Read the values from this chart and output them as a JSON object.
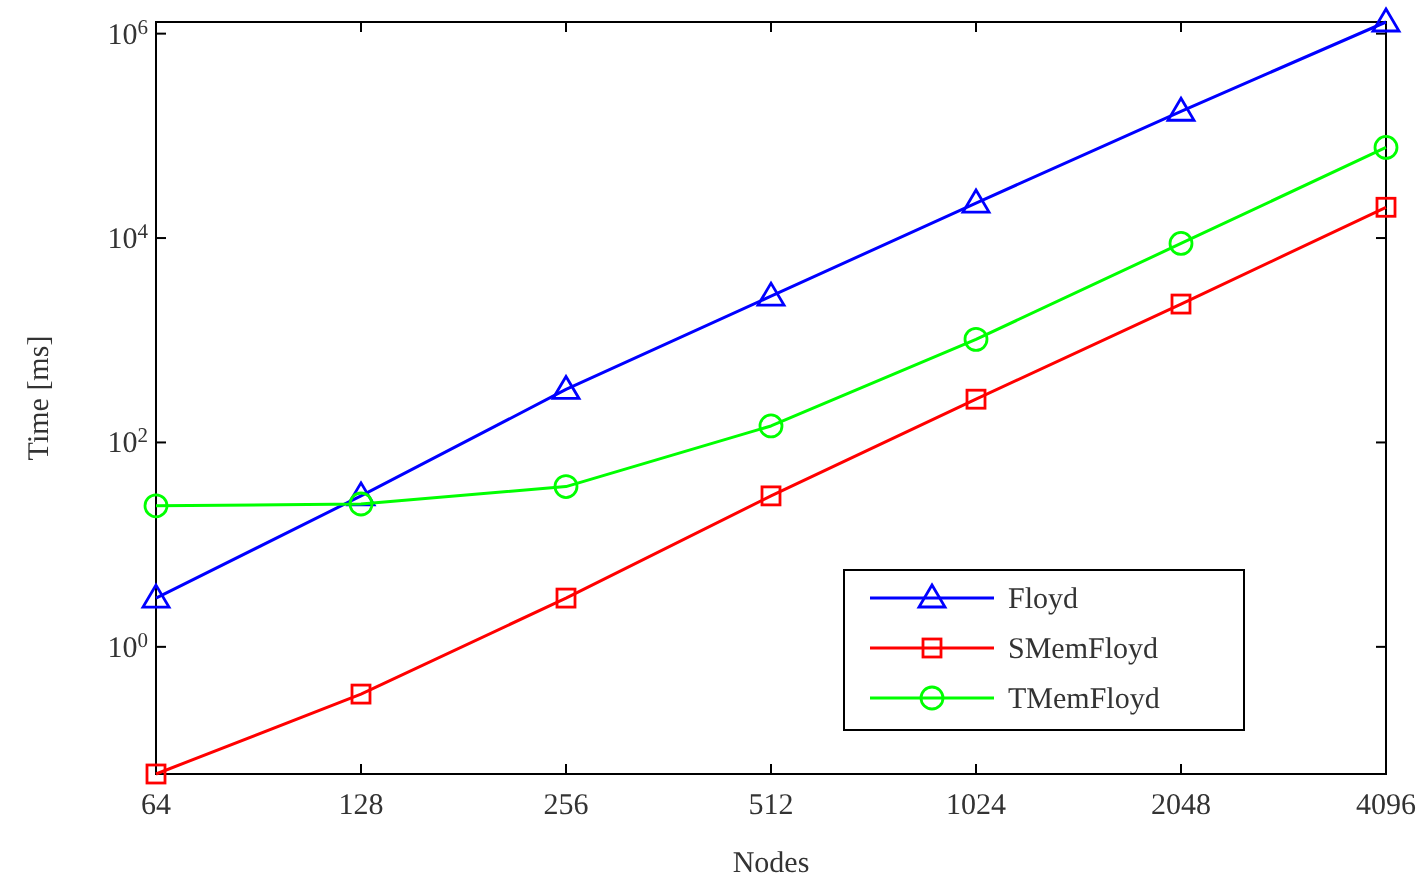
{
  "chart_data": {
    "type": "line",
    "xlabel": "Nodes",
    "ylabel": "Time [ms]",
    "log": "xy",
    "x": [
      64,
      128,
      256,
      512,
      1024,
      2048,
      4096
    ],
    "xlim": [
      64,
      4096
    ],
    "xticks": [
      64,
      128,
      256,
      512,
      1024,
      2048,
      4096
    ],
    "ylim": [
      0.057,
      1300000
    ],
    "yticks": [
      {
        "value": 1,
        "label": "10$^{0}$"
      },
      {
        "value": 100,
        "label": "10$^{2}$"
      },
      {
        "value": 10000,
        "label": "10$^{4}$"
      },
      {
        "value": 1000000,
        "label": "10$^{6}$"
      }
    ],
    "grid": false,
    "legend": "bottom right",
    "line_style": "solid",
    "series": [
      {
        "name": "Floyd",
        "color": "#0000ff",
        "marker": "triangle",
        "values": [
          3.0,
          30,
          330,
          2700,
          22000,
          174000,
          1300000
        ]
      },
      {
        "name": "SMemFloyd",
        "color": "#ff0000",
        "marker": "square",
        "values": [
          0.057,
          0.345,
          3.0,
          30,
          265,
          2260,
          20000
        ]
      },
      {
        "name": "TMemFloyd",
        "color": "#00ff00",
        "marker": "circle",
        "values": [
          24,
          25,
          37,
          145,
          1020,
          8850,
          77000
        ]
      }
    ]
  }
}
